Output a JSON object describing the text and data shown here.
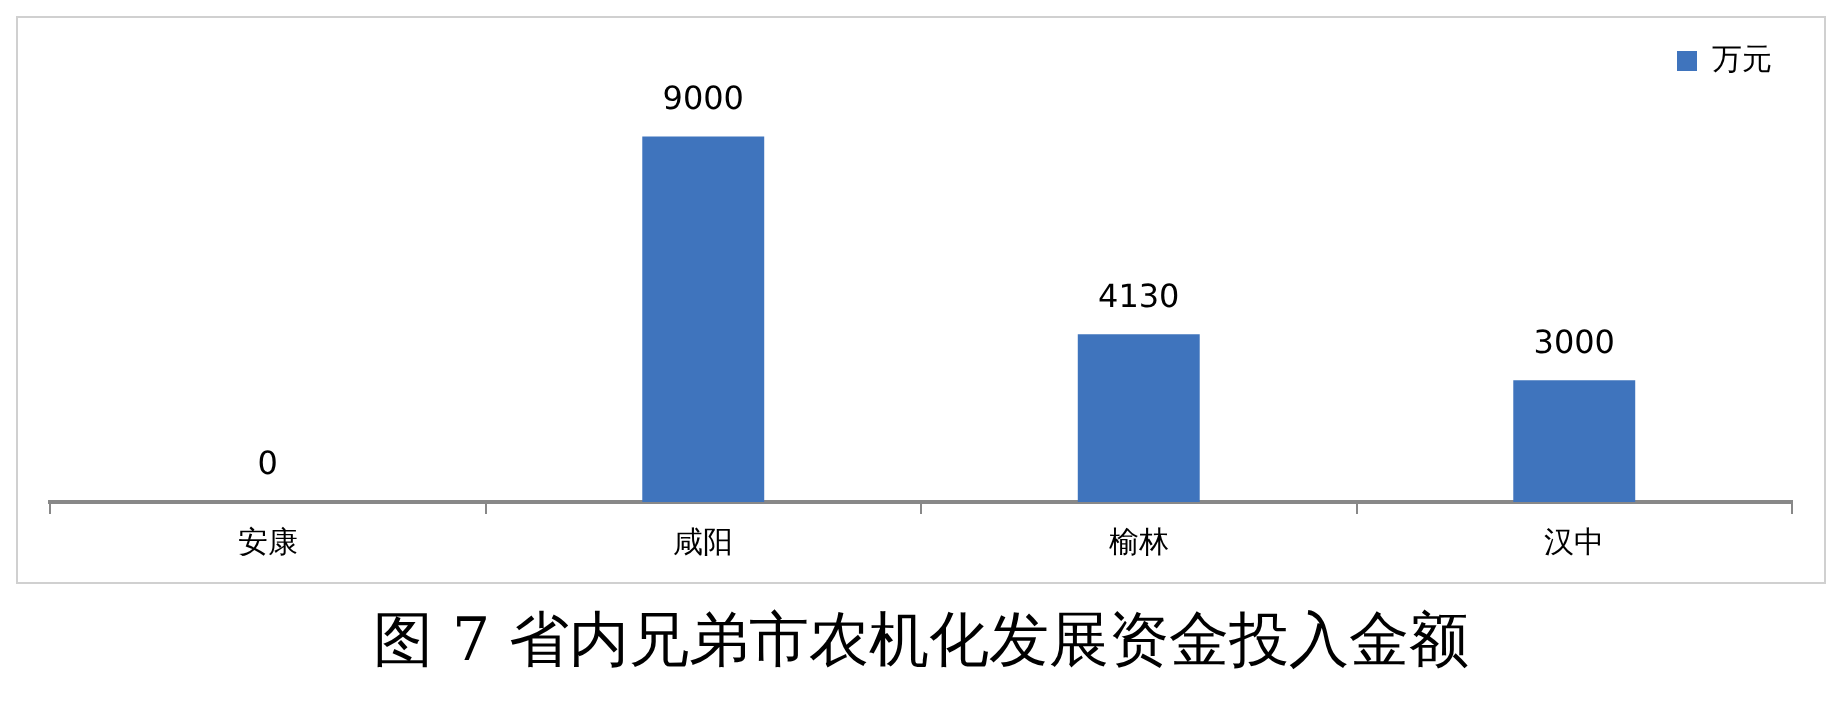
{
  "chart_data": {
    "type": "bar",
    "title": "图 7 省内兄弟市农机化发展资金投入金额",
    "categories": [
      "安康",
      "咸阳",
      "榆林",
      "汉中"
    ],
    "series": [
      {
        "name": "万元",
        "color": "#3f74bd",
        "values": [
          0,
          9000,
          4130,
          3000
        ]
      }
    ],
    "data_labels": true,
    "legend": "top right",
    "grid": false
  }
}
